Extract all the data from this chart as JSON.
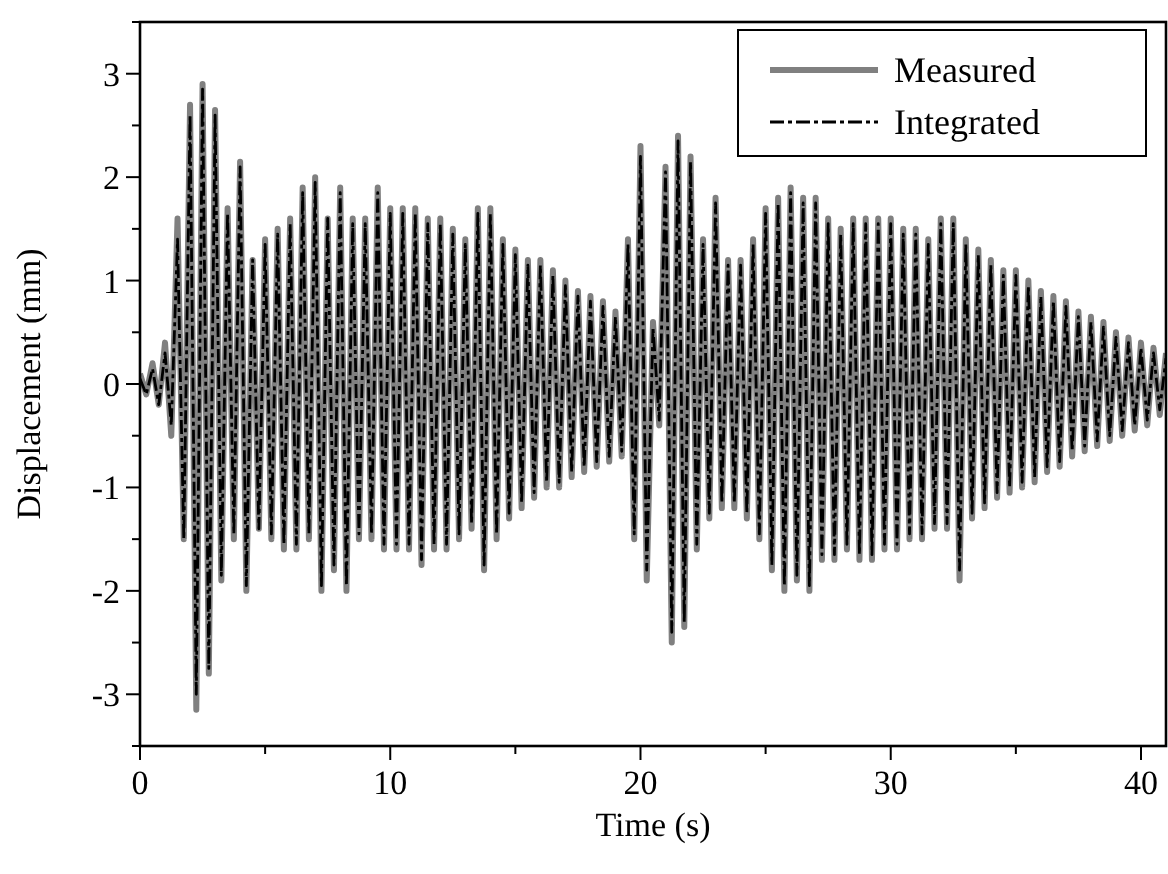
{
  "chart_data": {
    "type": "line",
    "xlabel": "Time (s)",
    "ylabel": "Displacement (mm)",
    "xlim": [
      0,
      41
    ],
    "ylim": [
      -3.5,
      3.5
    ],
    "xticks": [
      0,
      {
        "value": 5,
        "label": null
      },
      10,
      {
        "value": 15,
        "label": null
      },
      20,
      {
        "value": 25,
        "label": null
      },
      30,
      {
        "value": 35,
        "label": null
      },
      40
    ],
    "yticks": [
      {
        "value": -3.5,
        "label": null
      },
      -3,
      {
        "value": -2.5,
        "label": null
      },
      -2,
      {
        "value": -1.5,
        "label": null
      },
      -1,
      {
        "value": -0.5,
        "label": null
      },
      0,
      {
        "value": 0.5,
        "label": null
      },
      1,
      {
        "value": 1.5,
        "label": null
      },
      2,
      {
        "value": 2.5,
        "label": null
      },
      3,
      {
        "value": 3.5,
        "label": null
      }
    ],
    "grid": false,
    "legend": "top right",
    "x": [
      0,
      0.25,
      0.5,
      0.75,
      1,
      1.25,
      1.5,
      1.75,
      2,
      2.25,
      2.5,
      2.75,
      3,
      3.25,
      3.5,
      3.75,
      4,
      4.25,
      4.5,
      4.75,
      5,
      5.25,
      5.5,
      5.75,
      6,
      6.25,
      6.5,
      6.75,
      7,
      7.25,
      7.5,
      7.75,
      8,
      8.25,
      8.5,
      8.75,
      9,
      9.25,
      9.5,
      9.75,
      10,
      10.25,
      10.5,
      10.75,
      11,
      11.25,
      11.5,
      11.75,
      12,
      12.25,
      12.5,
      12.75,
      13,
      13.25,
      13.5,
      13.75,
      14,
      14.25,
      14.5,
      14.75,
      15,
      15.25,
      15.5,
      15.75,
      16,
      16.25,
      16.5,
      16.75,
      17,
      17.25,
      17.5,
      17.75,
      18,
      18.25,
      18.5,
      18.75,
      19,
      19.25,
      19.5,
      19.75,
      20,
      20.25,
      20.5,
      20.75,
      21,
      21.25,
      21.5,
      21.75,
      22,
      22.25,
      22.5,
      22.75,
      23,
      23.25,
      23.5,
      23.75,
      24,
      24.25,
      24.5,
      24.75,
      25,
      25.25,
      25.5,
      25.75,
      26,
      26.25,
      26.5,
      26.75,
      27,
      27.25,
      27.5,
      27.75,
      28,
      28.25,
      28.5,
      28.75,
      29,
      29.25,
      29.5,
      29.75,
      30,
      30.25,
      30.5,
      30.75,
      31,
      31.25,
      31.5,
      31.75,
      32,
      32.25,
      32.5,
      32.75,
      33,
      33.25,
      33.5,
      33.75,
      34,
      34.25,
      34.5,
      34.75,
      35,
      35.25,
      35.5,
      35.75,
      36,
      36.25,
      36.5,
      36.75,
      37,
      37.25,
      37.5,
      37.75,
      38,
      38.25,
      38.5,
      38.75,
      39,
      39.25,
      39.5,
      39.75,
      40,
      40.25,
      40.5,
      40.75,
      41
    ],
    "series": [
      {
        "name": "Measured",
        "color": "#808080",
        "line_style": "solid",
        "values": [
          0.1,
          -0.1,
          0.2,
          -0.2,
          0.4,
          -0.5,
          1.6,
          -1.5,
          2.7,
          -3.15,
          2.9,
          -2.8,
          2.65,
          -1.9,
          1.7,
          -1.5,
          2.15,
          -2.0,
          1.2,
          -1.4,
          1.4,
          -1.5,
          1.5,
          -1.6,
          1.6,
          -1.6,
          1.9,
          -1.5,
          2.0,
          -2.0,
          1.6,
          -1.8,
          1.9,
          -2.0,
          1.6,
          -1.5,
          1.6,
          -1.5,
          1.9,
          -1.6,
          1.7,
          -1.6,
          1.7,
          -1.6,
          1.7,
          -1.75,
          1.6,
          -1.6,
          1.6,
          -1.6,
          1.5,
          -1.5,
          1.4,
          -1.4,
          1.7,
          -1.8,
          1.7,
          -1.5,
          1.4,
          -1.3,
          1.3,
          -1.2,
          1.2,
          -1.1,
          1.2,
          -1.0,
          1.1,
          -1.0,
          1.0,
          -0.9,
          0.9,
          -0.85,
          0.85,
          -0.8,
          0.8,
          -0.75,
          0.7,
          -0.7,
          1.4,
          -1.5,
          2.3,
          -1.9,
          0.6,
          -0.4,
          2.1,
          -2.5,
          2.4,
          -2.35,
          2.2,
          -1.6,
          1.4,
          -1.3,
          1.8,
          -1.2,
          1.2,
          -1.2,
          1.2,
          -1.3,
          1.4,
          -1.5,
          1.7,
          -1.8,
          1.8,
          -2.0,
          1.9,
          -1.9,
          1.8,
          -2.0,
          1.8,
          -1.7,
          1.6,
          -1.7,
          1.5,
          -1.6,
          1.6,
          -1.7,
          1.6,
          -1.7,
          1.6,
          -1.6,
          1.6,
          -1.6,
          1.5,
          -1.5,
          1.5,
          -1.5,
          1.4,
          -1.4,
          1.6,
          -1.4,
          1.6,
          -1.9,
          1.4,
          -1.3,
          1.3,
          -1.2,
          1.2,
          -1.1,
          1.1,
          -1.05,
          1.1,
          -1.0,
          1.0,
          -0.95,
          0.9,
          -0.85,
          0.85,
          -0.8,
          0.8,
          -0.7,
          0.7,
          -0.65,
          0.65,
          -0.6,
          0.6,
          -0.55,
          0.5,
          -0.5,
          0.45,
          -0.45,
          0.4,
          -0.4,
          0.35,
          -0.3,
          0.3
        ]
      },
      {
        "name": "Integrated",
        "color": "#000000",
        "line_style": "dashed",
        "values": [
          0.05,
          -0.1,
          0.15,
          -0.2,
          0.3,
          -0.4,
          1.4,
          -1.5,
          2.6,
          -3.0,
          2.85,
          -2.75,
          2.6,
          -1.85,
          1.65,
          -1.45,
          2.1,
          -1.95,
          1.2,
          -1.4,
          1.35,
          -1.45,
          1.45,
          -1.55,
          1.55,
          -1.55,
          1.85,
          -1.45,
          1.95,
          -1.95,
          1.6,
          -1.75,
          1.85,
          -1.95,
          1.55,
          -1.45,
          1.55,
          -1.45,
          1.85,
          -1.55,
          1.65,
          -1.55,
          1.65,
          -1.55,
          1.65,
          -1.7,
          1.55,
          -1.55,
          1.55,
          -1.55,
          1.45,
          -1.45,
          1.35,
          -1.35,
          1.65,
          -1.75,
          1.65,
          -1.45,
          1.35,
          -1.25,
          1.25,
          -1.15,
          1.15,
          -1.05,
          1.15,
          -0.95,
          1.05,
          -0.95,
          0.95,
          -0.85,
          0.85,
          -0.8,
          0.8,
          -0.75,
          0.75,
          -0.7,
          0.65,
          -0.65,
          1.35,
          -1.45,
          2.2,
          -1.8,
          0.55,
          -0.35,
          2.05,
          -2.4,
          2.35,
          -2.3,
          2.15,
          -1.55,
          1.35,
          -1.25,
          1.75,
          -1.15,
          1.15,
          -1.15,
          1.15,
          -1.25,
          1.35,
          -1.45,
          1.65,
          -1.75,
          1.75,
          -1.95,
          1.85,
          -1.85,
          1.75,
          -1.95,
          1.75,
          -1.65,
          1.55,
          -1.65,
          1.45,
          -1.55,
          1.55,
          -1.65,
          1.55,
          -1.65,
          1.55,
          -1.55,
          1.55,
          -1.55,
          1.45,
          -1.45,
          1.45,
          -1.45,
          1.35,
          -1.35,
          1.55,
          -1.35,
          1.55,
          -1.8,
          1.35,
          -1.25,
          1.25,
          -1.15,
          1.15,
          -1.05,
          1.05,
          -1.0,
          1.05,
          -0.95,
          0.95,
          -0.9,
          0.85,
          -0.8,
          0.8,
          -0.75,
          0.75,
          -0.65,
          0.65,
          -0.6,
          0.6,
          -0.55,
          0.55,
          -0.5,
          0.45,
          -0.45,
          0.4,
          -0.4,
          0.35,
          -0.35,
          0.3,
          -0.25,
          0.25
        ]
      }
    ]
  }
}
